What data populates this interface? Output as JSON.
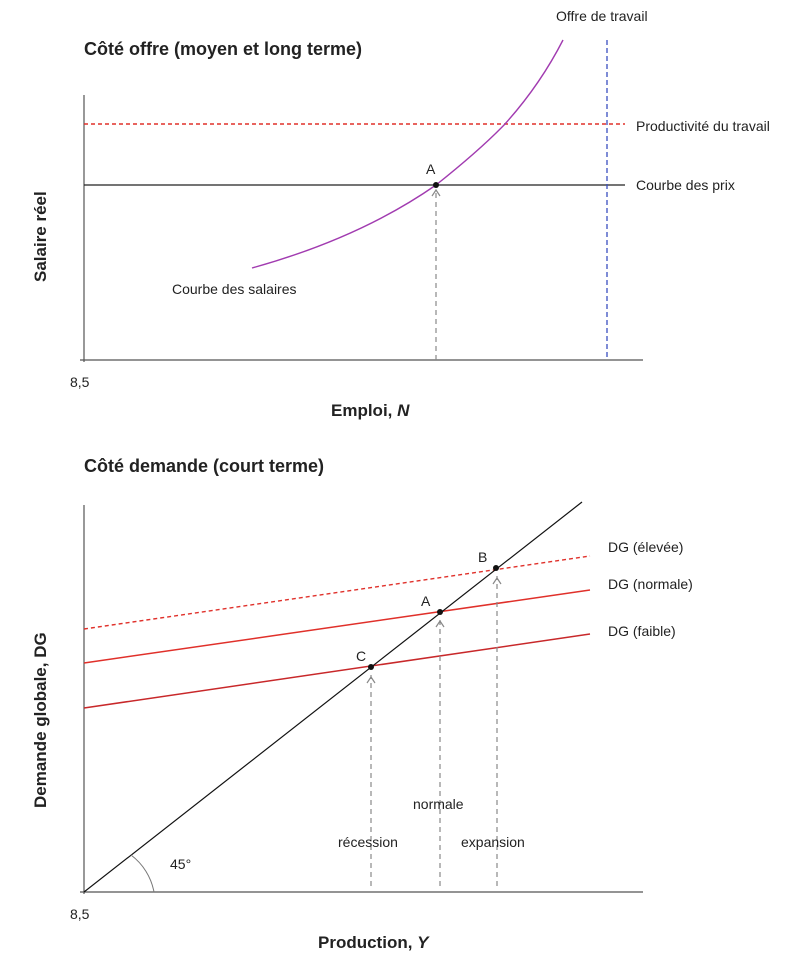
{
  "supply": {
    "title": "Côté offre (moyen et long terme)",
    "ylabel": "Salaire réel",
    "xlabel_main": "Emploi, ",
    "xlabel_var": "N",
    "origin": "8,5",
    "labor_supply": "Offre de travail",
    "productivity": "Productivité du travail",
    "price_curve": "Courbe des prix",
    "wage_curve": "Courbe des salaires",
    "point_a": "A"
  },
  "demand": {
    "title": "Côté demande (court terme)",
    "ylabel": "Demande globale, DG",
    "xlabel_main": "Production, ",
    "xlabel_var": "Y",
    "origin": "8,5",
    "dg_high": "DG (élevée)",
    "dg_normal": "DG (normale)",
    "dg_low": "DG (faible)",
    "point_a": "A",
    "point_b": "B",
    "point_c": "C",
    "normal": "normale",
    "recession": "récession",
    "expansion": "expansion",
    "angle": "45°"
  },
  "colors": {
    "red": "#e0302a",
    "purple": "#a13bb0",
    "blue": "#3a4fc0",
    "gray": "#888888"
  }
}
